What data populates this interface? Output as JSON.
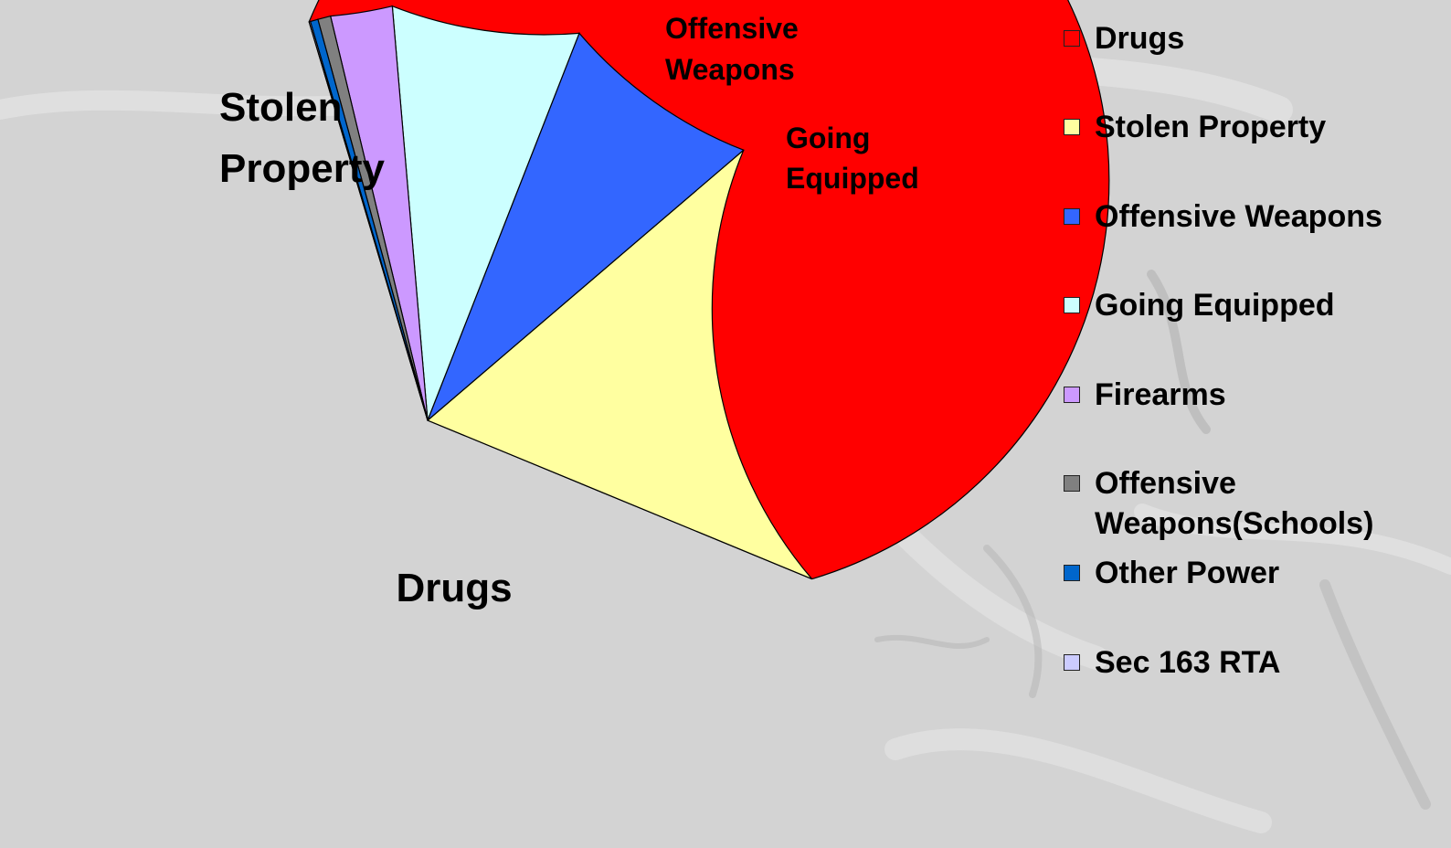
{
  "chart_data": {
    "type": "pie",
    "slices": [
      {
        "label": "Drugs",
        "value": 64.2,
        "color": "#ff0000"
      },
      {
        "label": "Stolen Property",
        "value": 17.5,
        "color": "#ffffa0"
      },
      {
        "label": "Offensive Weapons",
        "value": 7.8,
        "color": "#3366ff"
      },
      {
        "label": "Going Equipped",
        "value": 7.3,
        "color": "#ccffff"
      },
      {
        "label": "Firearms",
        "value": 2.4,
        "color": "#cc99ff"
      },
      {
        "label": "Offensive Weapons(Schools)",
        "value": 0.5,
        "color": "#808080"
      },
      {
        "label": "Other Power",
        "value": 0.3,
        "color": "#0066cc"
      },
      {
        "label": "Sec 163 RTA",
        "value": 0.05,
        "color": "#ccccff"
      }
    ],
    "slice_labels": {
      "drugs": "Drugs",
      "stolen_property": [
        "Stolen",
        "Property"
      ],
      "offensive_weapons": [
        "Offensive",
        "Weapons"
      ],
      "going_equipped": [
        "Going",
        "Equipped"
      ]
    },
    "legend": {
      "position": "right",
      "items": [
        {
          "label": "Drugs",
          "color": "#ff0000"
        },
        {
          "label": "Stolen Property",
          "color": "#ffffa0"
        },
        {
          "label": "Offensive Weapons",
          "color": "#3366ff"
        },
        {
          "label": "Going Equipped",
          "color": "#ccffff"
        },
        {
          "label": "Firearms",
          "color": "#cc99ff"
        },
        {
          "label": "Offensive Weapons(Schools)",
          "color": "#808080"
        },
        {
          "label": "Other Power",
          "color": "#0066cc"
        },
        {
          "label": "Sec 163 RTA",
          "color": "#ccccff"
        }
      ]
    }
  }
}
